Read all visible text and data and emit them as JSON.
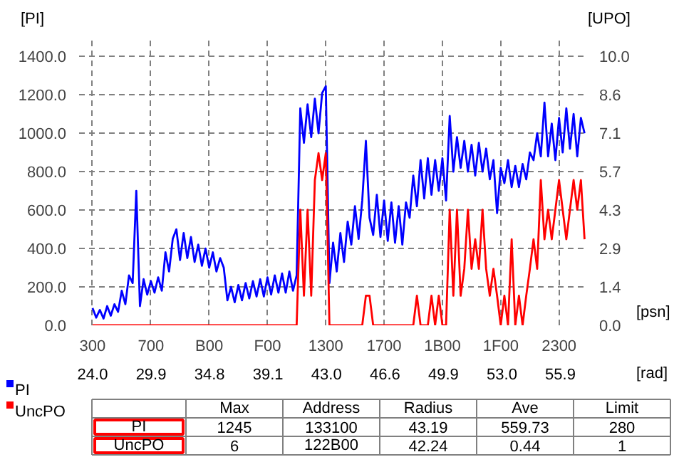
{
  "chart_data": {
    "type": "line",
    "ylabel": "[PI]",
    "y2label": "[UPO]",
    "xlabel": "[psn]",
    "x2label": "[rad]",
    "categories": [
      "300",
      null,
      null,
      null,
      null,
      null,
      null,
      null,
      null,
      null,
      null,
      null,
      null,
      null,
      null,
      null,
      "700",
      null,
      null,
      null,
      null,
      null,
      null,
      null,
      null,
      null,
      null,
      null,
      null,
      null,
      null,
      null,
      "B00",
      null,
      null,
      null,
      null,
      null,
      null,
      null,
      null,
      null,
      null,
      null,
      null,
      null,
      null,
      null,
      "F00",
      null,
      null,
      null,
      null,
      null,
      null,
      null,
      null,
      null,
      null,
      null,
      null,
      null,
      null,
      null,
      "1300",
      null,
      null,
      null,
      null,
      null,
      null,
      null,
      null,
      null,
      null,
      null,
      null,
      null,
      null,
      null,
      "1700",
      null,
      null,
      null,
      null,
      null,
      null,
      null,
      null,
      null,
      null,
      null,
      null,
      null,
      null,
      null,
      "1B00",
      null,
      null,
      null,
      null,
      null,
      null,
      null,
      null,
      null,
      null,
      null,
      null,
      null,
      null,
      null,
      "1F00",
      null,
      null,
      null,
      null,
      null,
      null,
      null,
      null,
      null,
      null,
      null,
      null,
      null,
      null,
      null,
      "2300",
      null,
      null,
      null,
      null,
      null,
      null,
      null
    ],
    "ylim": [
      0,
      1490
    ],
    "y2lim": [
      0,
      10.64
    ],
    "yticks": [
      {
        "value": 0,
        "label": "0.0"
      },
      {
        "value": 200,
        "label": "200.0"
      },
      {
        "value": 400,
        "label": "400.0"
      },
      {
        "value": 600,
        "label": "600.0"
      },
      {
        "value": 800,
        "label": "800.0"
      },
      {
        "value": 1000,
        "label": "1000.0"
      },
      {
        "value": 1200,
        "label": "1200.0"
      },
      {
        "value": 1400,
        "label": "1400.0"
      }
    ],
    "y2ticks": [
      {
        "value": 0,
        "label": "0.0"
      },
      {
        "value": 1.43,
        "label": "1.4"
      },
      {
        "value": 2.86,
        "label": "2.9"
      },
      {
        "value": 4.29,
        "label": "4.3"
      },
      {
        "value": 5.71,
        "label": "5.7"
      },
      {
        "value": 7.14,
        "label": "7.1"
      },
      {
        "value": 8.57,
        "label": "8.6"
      },
      {
        "value": 10,
        "label": "10.0"
      }
    ],
    "grid": true,
    "legend": "bottom left",
    "line_style": "solid",
    "series": [
      {
        "name": "PI",
        "color": "#0000ff",
        "values": [
          90,
          40,
          80,
          35,
          100,
          50,
          110,
          70,
          180,
          110,
          260,
          220,
          700,
          100,
          240,
          160,
          230,
          170,
          250,
          180,
          380,
          280,
          450,
          500,
          340,
          480,
          350,
          460,
          330,
          420,
          310,
          400,
          300,
          380,
          280,
          350,
          300,
          130,
          200,
          120,
          210,
          130,
          220,
          140,
          230,
          150,
          240,
          150,
          250,
          160,
          260,
          170,
          270,
          170,
          280,
          180,
          260,
          1130,
          950,
          1150,
          980,
          1180,
          1000,
          1210,
          1245,
          220,
          430,
          280,
          480,
          330,
          540,
          420,
          620,
          450,
          650,
          960,
          560,
          470,
          680,
          460,
          650,
          440,
          640,
          430,
          620,
          420,
          640,
          560,
          780,
          620,
          860,
          660,
          870,
          680,
          860,
          700,
          870,
          650,
          1090,
          800,
          980,
          820,
          960,
          800,
          940,
          780,
          950,
          800,
          920,
          760,
          860,
          584,
          820,
          740,
          860,
          720,
          830,
          720,
          840,
          760,
          900,
          860,
          1000,
          880,
          1160,
          880,
          1050,
          860,
          1080,
          900,
          1130,
          920,
          1100,
          880,
          1080,
          1000
        ]
      },
      {
        "name": "UncPO",
        "color": "#ff0000",
        "axis": "y2",
        "values": [
          0,
          0,
          0,
          0,
          0,
          0,
          0,
          0,
          0,
          0,
          0,
          0,
          0,
          0,
          0,
          0,
          0,
          0,
          0,
          0,
          0,
          0,
          0,
          0,
          0,
          0,
          0,
          0,
          0,
          0,
          0,
          0,
          0,
          0,
          0,
          0,
          0,
          0,
          0,
          0,
          0,
          0,
          0,
          0,
          0,
          0,
          0,
          0,
          0,
          0,
          0,
          0,
          0,
          0,
          0,
          0,
          0,
          4.3,
          1.1,
          4.3,
          1.1,
          5.4,
          6.4,
          5.4,
          6.4,
          0,
          0,
          0,
          0,
          0,
          0,
          0,
          0,
          0,
          0,
          1.1,
          1.1,
          0,
          0,
          0,
          0,
          0,
          0,
          0,
          0,
          0,
          0,
          0,
          0,
          1.1,
          0,
          0,
          0,
          1.1,
          0,
          1.1,
          0,
          0,
          4.3,
          1.1,
          4.3,
          1.1,
          2.1,
          4.3,
          2.1,
          3.2,
          2.1,
          4.3,
          2.1,
          1.1,
          2.1,
          1.1,
          0,
          1.1,
          0,
          3.2,
          0,
          1.1,
          0,
          1.1,
          2.1,
          3.2,
          2.1,
          5.4,
          3.2,
          4.3,
          3.2,
          4.3,
          5.4,
          4.3,
          3.2,
          4.3,
          5.4,
          4.3,
          5.4,
          3.2
        ]
      }
    ],
    "annotations": [
      "24.0",
      "29.9",
      "34.8",
      "39.1",
      "43.0",
      "46.6",
      "49.9",
      "53.0",
      "55.9",
      "Max",
      "Address",
      "Radius",
      "Ave",
      "Limit",
      "PI",
      "1245",
      "133100",
      "43.19",
      "559.73",
      "280",
      "UncPO",
      "6",
      "122B00",
      "42.24",
      "0.44",
      "1"
    ]
  }
}
